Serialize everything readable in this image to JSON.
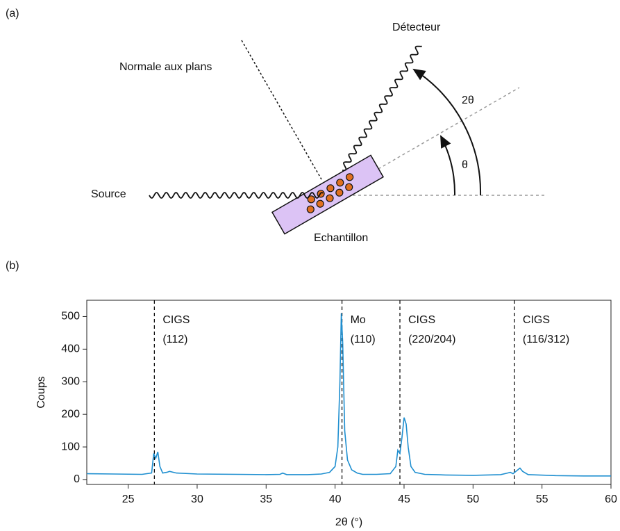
{
  "diagram": {
    "panel_label": "(a)",
    "detector": "Détecteur",
    "normal": "Normale aux plans",
    "two_theta": "2θ",
    "theta": "θ",
    "source": "Source",
    "sample": "Echantillon"
  },
  "chart_data": {
    "type": "line",
    "panel_label": "(b)",
    "x_label": "2θ (°)",
    "y_label": "Coups",
    "xlim": [
      22,
      60
    ],
    "ylim": [
      -15,
      550
    ],
    "xticks": [
      25,
      30,
      35,
      40,
      45,
      50,
      55,
      60
    ],
    "yticks": [
      0,
      100,
      200,
      300,
      400,
      500
    ],
    "x": [
      22,
      24,
      26,
      26.7,
      26.85,
      27.0,
      27.15,
      27.3,
      27.5,
      27.8,
      28.0,
      28.5,
      30,
      33,
      35,
      36,
      36.2,
      36.5,
      38,
      39,
      39.6,
      40.0,
      40.2,
      40.35,
      40.45,
      40.55,
      40.7,
      40.9,
      41.2,
      41.6,
      42,
      43,
      44,
      44.4,
      44.55,
      44.7,
      44.85,
      45.0,
      45.15,
      45.3,
      45.5,
      45.8,
      46.5,
      48,
      50,
      52,
      52.5,
      52.7,
      52.9,
      53.2,
      53.4,
      53.6,
      54,
      56,
      58,
      60
    ],
    "series": [
      {
        "color": "#1f8fd0",
        "values": [
          18,
          17,
          16,
          20,
          80,
          65,
          85,
          40,
          20,
          22,
          25,
          20,
          17,
          16,
          15,
          16,
          20,
          15,
          15,
          17,
          22,
          40,
          100,
          300,
          510,
          420,
          150,
          60,
          30,
          20,
          16,
          16,
          18,
          40,
          90,
          80,
          130,
          190,
          170,
          100,
          40,
          22,
          16,
          14,
          13,
          15,
          20,
          22,
          18,
          28,
          35,
          25,
          15,
          12,
          11,
          11
        ]
      }
    ],
    "annotations": [
      {
        "x": 26.9,
        "text": [
          "CIGS",
          "(112)"
        ]
      },
      {
        "x": 40.5,
        "text": [
          "Mo",
          "(110)"
        ]
      },
      {
        "x": 44.7,
        "text": [
          "CIGS",
          "(220/204)"
        ]
      },
      {
        "x": 53.0,
        "text": [
          "CIGS",
          "(116/312)"
        ]
      }
    ]
  }
}
